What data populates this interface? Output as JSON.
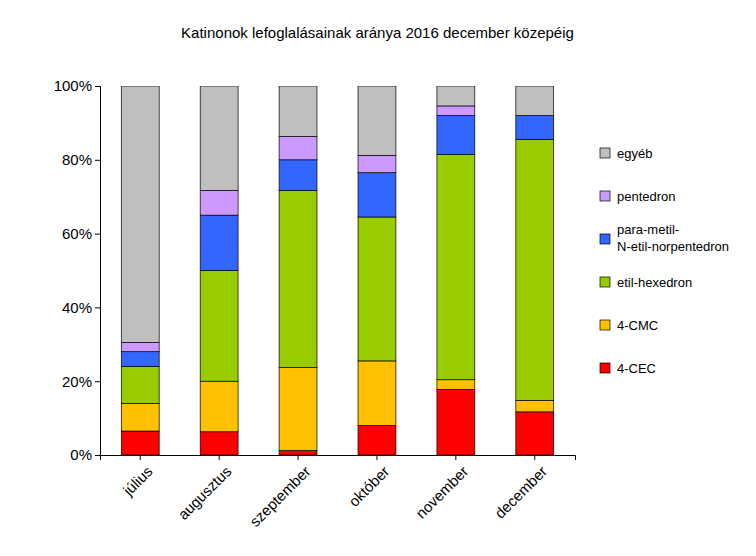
{
  "chart_data": {
    "type": "bar",
    "title": "Katinonok lefoglalásainak aránya 2016 december közepéig",
    "stacked": true,
    "grid": false,
    "legend": "right",
    "categories": [
      "július",
      "augusztus",
      "szeptember",
      "október",
      "november",
      "december"
    ],
    "ylim": [
      0,
      100
    ],
    "yticks": [
      {
        "value": 0,
        "label": "0%"
      },
      {
        "value": 20,
        "label": "20%"
      },
      {
        "value": 40,
        "label": "40%"
      },
      {
        "value": 60,
        "label": "60%"
      },
      {
        "value": 80,
        "label": "80%"
      },
      {
        "value": 100,
        "label": "100%"
      }
    ],
    "series": [
      {
        "name": "4-CEC",
        "color": "#ff0000",
        "values": [
          6.5,
          6.3,
          1.2,
          8,
          17.8,
          11.7
        ]
      },
      {
        "name": "4-CMC",
        "color": "#ffc000",
        "values": [
          7.5,
          13.7,
          22.5,
          17.5,
          2.6,
          3.1
        ]
      },
      {
        "name": "etil-hexedron",
        "color": "#99cc00",
        "values": [
          10,
          30,
          48,
          39,
          61,
          70.7
        ]
      },
      {
        "name": "para-metil-N-etil-norpentedron",
        "color": "#3366ff",
        "values": [
          4,
          15,
          8.3,
          12,
          10.6,
          6.5
        ]
      },
      {
        "name": "pentedron",
        "color": "#cc99ff",
        "values": [
          2.5,
          6.7,
          6.3,
          4.7,
          2.6,
          0
        ]
      },
      {
        "name": "egyéb",
        "color": "#bfbfbf",
        "values": [
          69.5,
          28.3,
          13.7,
          18.8,
          5.4,
          8
        ]
      }
    ]
  }
}
